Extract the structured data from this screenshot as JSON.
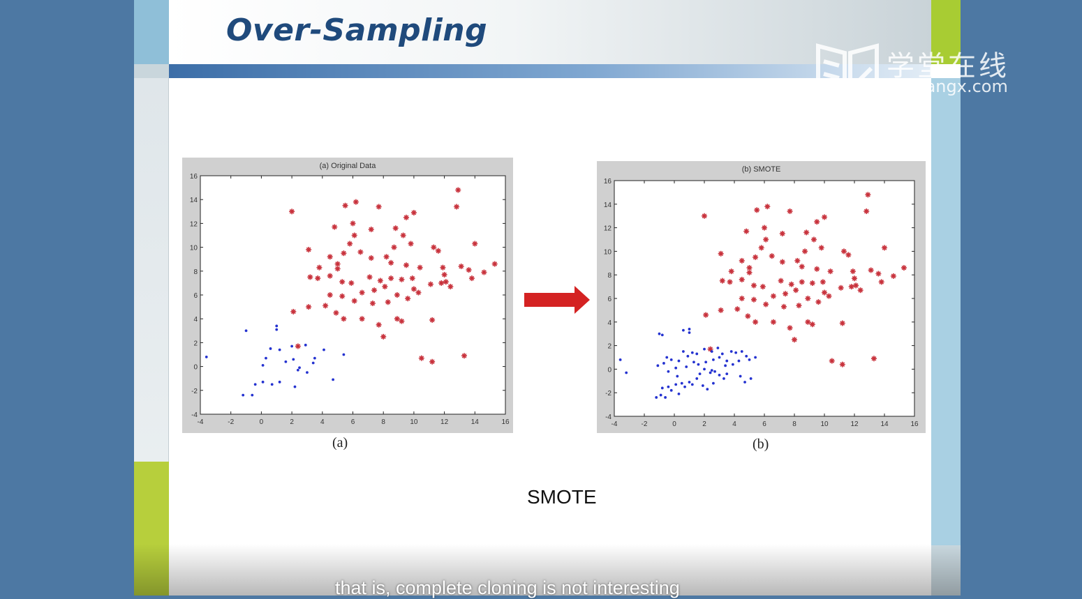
{
  "slide": {
    "title": "Over-Sampling",
    "caption_left": "(a)",
    "caption_right": "(b)",
    "method_label": "SMOTE",
    "subtitle": "that is, complete cloning is not interesting"
  },
  "watermark": {
    "cn": "学堂在线",
    "url": "xuetangx.com"
  },
  "colors": {
    "majority": "#c8323c",
    "minority": "#2432d0",
    "arrow": "#d42222",
    "title": "#1f4a7c"
  },
  "chart_data": [
    {
      "type": "scatter",
      "title": "(a) Original Data",
      "xlim": [
        -4,
        16
      ],
      "ylim": [
        -4,
        16
      ],
      "xticks": [
        "-4",
        "-2",
        "0",
        "2",
        "4",
        "6",
        "8",
        "10",
        "12",
        "14",
        "16"
      ],
      "yticks": [
        "-4",
        "-2",
        "0",
        "2",
        "4",
        "6",
        "8",
        "10",
        "12",
        "14",
        "16"
      ],
      "series": [
        {
          "marker": "star",
          "points": [
            [
              2,
              13
            ],
            [
              5.5,
              13.5
            ],
            [
              6.2,
              13.8
            ],
            [
              7.7,
              13.4
            ],
            [
              12.9,
              14.8
            ],
            [
              12.8,
              13.4
            ],
            [
              9.5,
              12.5
            ],
            [
              10,
              12.9
            ],
            [
              4.8,
              11.7
            ],
            [
              6,
              12
            ],
            [
              7.2,
              11.5
            ],
            [
              8.8,
              11.6
            ],
            [
              9.3,
              11
            ],
            [
              6.1,
              11
            ],
            [
              5.8,
              10.3
            ],
            [
              3.1,
              9.8
            ],
            [
              4.5,
              9.2
            ],
            [
              5,
              8.6
            ],
            [
              3.8,
              8.3
            ],
            [
              5.4,
              9.5
            ],
            [
              6.5,
              9.6
            ],
            [
              7.2,
              9.1
            ],
            [
              8.2,
              9.2
            ],
            [
              8.7,
              10
            ],
            [
              9.8,
              10.3
            ],
            [
              11.3,
              10
            ],
            [
              11.6,
              9.7
            ],
            [
              14,
              10.3
            ],
            [
              8.5,
              8.7
            ],
            [
              9.5,
              8.5
            ],
            [
              10.4,
              8.3
            ],
            [
              11.9,
              8.3
            ],
            [
              12,
              7.7
            ],
            [
              13.1,
              8.4
            ],
            [
              13.6,
              8.1
            ],
            [
              14.6,
              7.9
            ],
            [
              15.3,
              8.6
            ],
            [
              13.8,
              7.4
            ],
            [
              3.2,
              7.5
            ],
            [
              3.7,
              7.4
            ],
            [
              5.3,
              7.1
            ],
            [
              5.9,
              7
            ],
            [
              7.1,
              7.5
            ],
            [
              7.8,
              7.2
            ],
            [
              8.5,
              7.4
            ],
            [
              9.2,
              7.3
            ],
            [
              9.9,
              7.4
            ],
            [
              11.8,
              7
            ],
            [
              12.4,
              6.7
            ],
            [
              12.1,
              7.1
            ],
            [
              4.5,
              6
            ],
            [
              5.3,
              5.9
            ],
            [
              6.6,
              6.2
            ],
            [
              7.4,
              6.4
            ],
            [
              8.1,
              6.7
            ],
            [
              8.9,
              6
            ],
            [
              10.3,
              6.2
            ],
            [
              11.1,
              6.9
            ],
            [
              3.1,
              5
            ],
            [
              4.2,
              5.1
            ],
            [
              6.1,
              5.5
            ],
            [
              7.3,
              5.3
            ],
            [
              8.3,
              5.4
            ],
            [
              9.6,
              5.7
            ],
            [
              2.1,
              4.6
            ],
            [
              4.9,
              4.5
            ],
            [
              5.4,
              4
            ],
            [
              6.6,
              4
            ],
            [
              7.7,
              3.5
            ],
            [
              8.9,
              4
            ],
            [
              9.2,
              3.8
            ],
            [
              11.2,
              3.9
            ],
            [
              8,
              2.5
            ],
            [
              2.4,
              1.7
            ],
            [
              10.5,
              0.7
            ],
            [
              11.2,
              0.4
            ],
            [
              13.3,
              0.9
            ],
            [
              5,
              8.2
            ],
            [
              4.5,
              7.6
            ],
            [
              10,
              6.5
            ]
          ]
        },
        {
          "marker": "dot",
          "points": [
            [
              -3.6,
              0.8
            ],
            [
              -1,
              3
            ],
            [
              1,
              3.4
            ],
            [
              1,
              3.1
            ],
            [
              0.6,
              1.5
            ],
            [
              1.2,
              1.4
            ],
            [
              2,
              1.7
            ],
            [
              2.9,
              1.8
            ],
            [
              3.5,
              0.7
            ],
            [
              4.1,
              1.4
            ],
            [
              1.6,
              0.4
            ],
            [
              2.1,
              0.6
            ],
            [
              3.4,
              0.3
            ],
            [
              0.3,
              0.7
            ],
            [
              0.1,
              0.1
            ],
            [
              2.4,
              -0.3
            ],
            [
              3,
              -0.5
            ],
            [
              5.4,
              1
            ],
            [
              4.7,
              -1.1
            ],
            [
              0.1,
              -1.3
            ],
            [
              0.7,
              -1.5
            ],
            [
              1.2,
              -1.3
            ],
            [
              2.2,
              -1.7
            ],
            [
              -0.6,
              -2.4
            ],
            [
              -1.2,
              -2.4
            ],
            [
              -0.4,
              -1.5
            ],
            [
              2.5,
              -0.1
            ]
          ]
        }
      ]
    },
    {
      "type": "scatter",
      "title": "(b) SMOTE",
      "xlim": [
        -4,
        16
      ],
      "ylim": [
        -4,
        16
      ],
      "xticks": [
        "-4",
        "-2",
        "0",
        "2",
        "4",
        "6",
        "8",
        "10",
        "12",
        "14",
        "16"
      ],
      "yticks": [
        "-4",
        "-2",
        "0",
        "2",
        "4",
        "6",
        "8",
        "10",
        "12",
        "14",
        "16"
      ],
      "series": [
        {
          "marker": "star",
          "points": [
            [
              2,
              13
            ],
            [
              5.5,
              13.5
            ],
            [
              6.2,
              13.8
            ],
            [
              7.7,
              13.4
            ],
            [
              12.9,
              14.8
            ],
            [
              12.8,
              13.4
            ],
            [
              9.5,
              12.5
            ],
            [
              10,
              12.9
            ],
            [
              4.8,
              11.7
            ],
            [
              6,
              12
            ],
            [
              7.2,
              11.5
            ],
            [
              8.8,
              11.6
            ],
            [
              9.3,
              11
            ],
            [
              6.1,
              11
            ],
            [
              5.8,
              10.3
            ],
            [
              3.1,
              9.8
            ],
            [
              4.5,
              9.2
            ],
            [
              5,
              8.6
            ],
            [
              3.8,
              8.3
            ],
            [
              5.4,
              9.5
            ],
            [
              6.5,
              9.6
            ],
            [
              7.2,
              9.1
            ],
            [
              8.2,
              9.2
            ],
            [
              8.7,
              10
            ],
            [
              9.8,
              10.3
            ],
            [
              11.3,
              10
            ],
            [
              11.6,
              9.7
            ],
            [
              14,
              10.3
            ],
            [
              8.5,
              8.7
            ],
            [
              9.5,
              8.5
            ],
            [
              10.4,
              8.3
            ],
            [
              11.9,
              8.3
            ],
            [
              12,
              7.7
            ],
            [
              13.1,
              8.4
            ],
            [
              13.6,
              8.1
            ],
            [
              14.6,
              7.9
            ],
            [
              15.3,
              8.6
            ],
            [
              13.8,
              7.4
            ],
            [
              3.2,
              7.5
            ],
            [
              3.7,
              7.4
            ],
            [
              5.3,
              7.1
            ],
            [
              5.9,
              7
            ],
            [
              7.1,
              7.5
            ],
            [
              7.8,
              7.2
            ],
            [
              8.5,
              7.4
            ],
            [
              9.2,
              7.3
            ],
            [
              9.9,
              7.4
            ],
            [
              11.8,
              7
            ],
            [
              12.4,
              6.7
            ],
            [
              12.1,
              7.1
            ],
            [
              4.5,
              6
            ],
            [
              5.3,
              5.9
            ],
            [
              6.6,
              6.2
            ],
            [
              7.4,
              6.4
            ],
            [
              8.1,
              6.7
            ],
            [
              8.9,
              6
            ],
            [
              10.3,
              6.2
            ],
            [
              11.1,
              6.9
            ],
            [
              3.1,
              5
            ],
            [
              4.2,
              5.1
            ],
            [
              6.1,
              5.5
            ],
            [
              7.3,
              5.3
            ],
            [
              8.3,
              5.4
            ],
            [
              9.6,
              5.7
            ],
            [
              2.1,
              4.6
            ],
            [
              4.9,
              4.5
            ],
            [
              5.4,
              4
            ],
            [
              6.6,
              4
            ],
            [
              7.7,
              3.5
            ],
            [
              8.9,
              4
            ],
            [
              9.2,
              3.8
            ],
            [
              11.2,
              3.9
            ],
            [
              8,
              2.5
            ],
            [
              2.4,
              1.7
            ],
            [
              10.5,
              0.7
            ],
            [
              11.2,
              0.4
            ],
            [
              13.3,
              0.9
            ],
            [
              5,
              8.2
            ],
            [
              4.5,
              7.6
            ],
            [
              10,
              6.5
            ]
          ]
        },
        {
          "marker": "dot",
          "points": [
            [
              -3.6,
              0.8
            ],
            [
              -3.2,
              -0.3
            ],
            [
              -1,
              3
            ],
            [
              -0.8,
              2.9
            ],
            [
              1,
              3.4
            ],
            [
              1,
              3.1
            ],
            [
              0.6,
              3.3
            ],
            [
              0.6,
              1.5
            ],
            [
              1.2,
              1.4
            ],
            [
              0.9,
              1.1
            ],
            [
              1.5,
              1.3
            ],
            [
              2,
              1.7
            ],
            [
              2.9,
              1.8
            ],
            [
              2.5,
              1.5
            ],
            [
              3.2,
              1.3
            ],
            [
              3.5,
              0.7
            ],
            [
              4.1,
              1.4
            ],
            [
              3.8,
              1.5
            ],
            [
              4.5,
              1.5
            ],
            [
              4.8,
              1.1
            ],
            [
              5.4,
              1
            ],
            [
              5,
              0.8
            ],
            [
              1.6,
              0.4
            ],
            [
              2.1,
              0.6
            ],
            [
              2.6,
              0.8
            ],
            [
              3,
              1
            ],
            [
              3.4,
              0.3
            ],
            [
              3.9,
              0.4
            ],
            [
              4.3,
              0.7
            ],
            [
              0.3,
              0.7
            ],
            [
              0.1,
              0.1
            ],
            [
              -0.2,
              0.8
            ],
            [
              -0.7,
              0.5
            ],
            [
              -1.1,
              0.3
            ],
            [
              -0.5,
              1
            ],
            [
              0.8,
              0.2
            ],
            [
              1.3,
              0.6
            ],
            [
              2.4,
              -0.3
            ],
            [
              3,
              -0.5
            ],
            [
              2.7,
              -0.2
            ],
            [
              3.5,
              -0.4
            ],
            [
              2,
              0
            ],
            [
              1.7,
              -0.4
            ],
            [
              4.7,
              -1.1
            ],
            [
              4.4,
              -0.6
            ],
            [
              5.1,
              -0.8
            ],
            [
              0.1,
              -1.3
            ],
            [
              0.7,
              -1.5
            ],
            [
              1.2,
              -1.3
            ],
            [
              0.5,
              -1.2
            ],
            [
              1,
              -1.1
            ],
            [
              2.2,
              -1.7
            ],
            [
              1.9,
              -1.4
            ],
            [
              2.6,
              -1.2
            ],
            [
              -0.6,
              -2.4
            ],
            [
              -1.2,
              -2.4
            ],
            [
              -0.9,
              -2.2
            ],
            [
              -0.4,
              -1.5
            ],
            [
              -0.8,
              -1.6
            ],
            [
              -0.2,
              -1.8
            ],
            [
              0.3,
              -2.1
            ],
            [
              2.5,
              -0.1
            ],
            [
              3.3,
              -0.8
            ],
            [
              1.5,
              -0.8
            ],
            [
              0.2,
              -0.6
            ],
            [
              -0.4,
              -0.2
            ]
          ]
        }
      ]
    }
  ]
}
